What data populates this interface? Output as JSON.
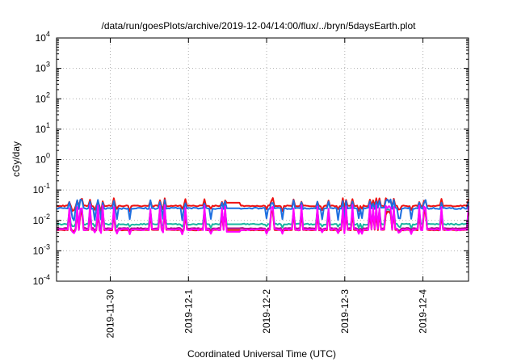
{
  "chart_data": {
    "type": "line",
    "title": "/data/run/goesPlots/archive/2019-12-04/14:00/flux/../bryn/5daysEarth.plot",
    "xlabel": "Coordinated Universal Time (UTC)",
    "ylabel": "cGy/day",
    "yscale": "log",
    "ylim": [
      0.0001,
      10000
    ],
    "xlim": [
      "2019-11-29T07:30",
      "2019-12-04T14:00"
    ],
    "grid": true,
    "x_ticks": [
      {
        "label": "2019-11-30",
        "value": "2019-11-30T00:00"
      },
      {
        "label": "2019-12-1",
        "value": "2019-12-01T00:00"
      },
      {
        "label": "2019-12-2",
        "value": "2019-12-02T00:00"
      },
      {
        "label": "2019-12-3",
        "value": "2019-12-03T00:00"
      },
      {
        "label": "2019-12-4",
        "value": "2019-12-04T00:00"
      }
    ],
    "y_ticks": [
      {
        "base": "10",
        "exp": "-4",
        "value": 0.0001
      },
      {
        "base": "10",
        "exp": "-3",
        "value": 0.001
      },
      {
        "base": "10",
        "exp": "-2",
        "value": 0.01
      },
      {
        "base": "10",
        "exp": "-1",
        "value": 0.1
      },
      {
        "base": "10",
        "exp": "0",
        "value": 1
      },
      {
        "base": "10",
        "exp": "1",
        "value": 10
      },
      {
        "base": "10",
        "exp": "2",
        "value": 100
      },
      {
        "base": "10",
        "exp": "3",
        "value": 1000
      },
      {
        "base": "10",
        "exp": "4",
        "value": 10000
      }
    ],
    "series": [
      {
        "color": "#ee1111",
        "base": 0.03,
        "plateau": 0.038,
        "spike_hi": 0.05,
        "dip_lo": 0.022,
        "noise": 0.08
      },
      {
        "color": "#1e6fe0",
        "base": 0.025,
        "plateau": 0.025,
        "spike_hi": 0.045,
        "dip_lo": 0.011,
        "noise": 0.12
      },
      {
        "color": "#1ab5a0",
        "base": 0.0075,
        "plateau": 0.0075,
        "spike_hi": 0.022,
        "dip_lo": 0.006,
        "noise": 0.1
      },
      {
        "color": "#aa1188",
        "base": 0.0055,
        "plateau": 0.0055,
        "spike_hi": 0.02,
        "dip_lo": 0.0045,
        "noise": 0.06
      },
      {
        "color": "#ee1111",
        "base": 0.0048,
        "plateau": 0.0048,
        "spike_hi": 0.019,
        "dip_lo": 0.0042,
        "noise": 0.05
      },
      {
        "color": "#ff00ff",
        "base": 0.005,
        "plateau": 0.0042,
        "spike_hi": 0.03,
        "dip_lo": 0.0038,
        "noise": 0.12
      }
    ]
  }
}
